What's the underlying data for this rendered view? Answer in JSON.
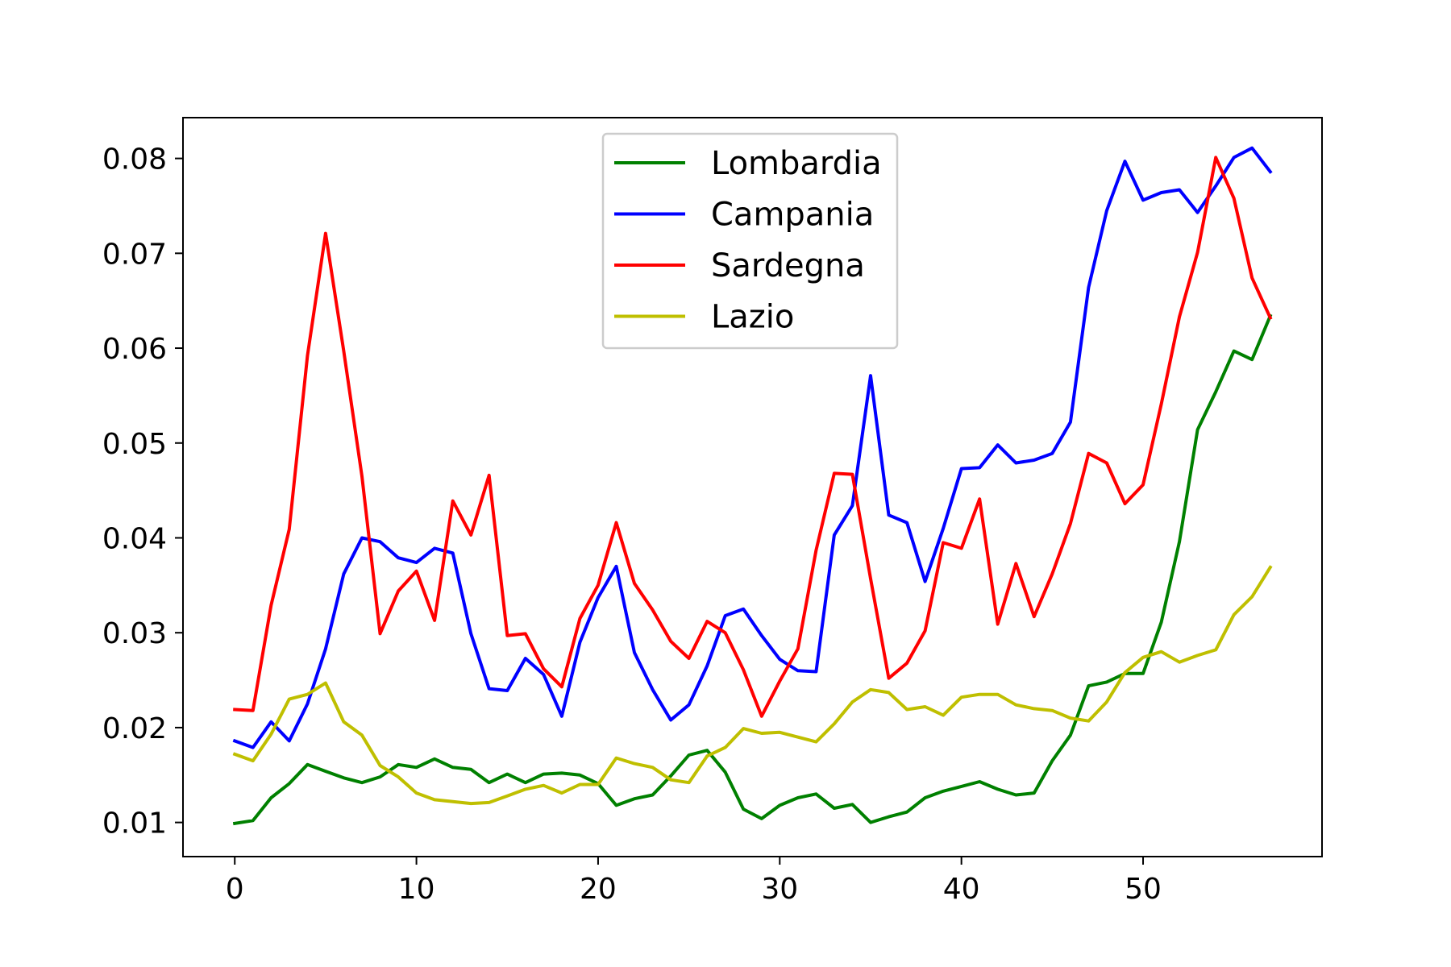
{
  "chart_data": {
    "type": "line",
    "title": "",
    "xlabel": "",
    "ylabel": "",
    "xlim": [
      -2.85,
      59.85
    ],
    "ylim": [
      0.0064,
      0.0843
    ],
    "x_ticks": [
      0,
      10,
      20,
      30,
      40,
      50
    ],
    "x_tick_labels": [
      "0",
      "10",
      "20",
      "30",
      "40",
      "50"
    ],
    "y_ticks": [
      0.01,
      0.02,
      0.03,
      0.04,
      0.05,
      0.06,
      0.07,
      0.08
    ],
    "y_tick_labels": [
      "0.01",
      "0.02",
      "0.03",
      "0.04",
      "0.05",
      "0.06",
      "0.07",
      "0.08"
    ],
    "grid": false,
    "legend_position": "upper center",
    "x": [
      0,
      1,
      2,
      3,
      4,
      5,
      6,
      7,
      8,
      9,
      10,
      11,
      12,
      13,
      14,
      15,
      16,
      17,
      18,
      19,
      20,
      21,
      22,
      23,
      24,
      25,
      26,
      27,
      28,
      29,
      30,
      31,
      32,
      33,
      34,
      35,
      36,
      37,
      38,
      39,
      40,
      41,
      42,
      43,
      44,
      45,
      46,
      47,
      48,
      49,
      50,
      51,
      52,
      53,
      54,
      55,
      56,
      57
    ],
    "series": [
      {
        "name": "Lombardia",
        "color": "#008000",
        "values": [
          0.0099,
          0.0102,
          0.0126,
          0.0141,
          0.0161,
          0.0154,
          0.0147,
          0.0142,
          0.0148,
          0.0161,
          0.0158,
          0.0167,
          0.0158,
          0.0156,
          0.0142,
          0.0151,
          0.0142,
          0.0151,
          0.0152,
          0.015,
          0.0141,
          0.0118,
          0.0125,
          0.0129,
          0.0149,
          0.0171,
          0.0176,
          0.0153,
          0.0114,
          0.0104,
          0.0118,
          0.0126,
          0.013,
          0.0115,
          0.0119,
          0.01,
          0.0106,
          0.0111,
          0.0126,
          0.0133,
          0.0138,
          0.0143,
          0.0135,
          0.0129,
          0.0131,
          0.0165,
          0.0192,
          0.0244,
          0.0248,
          0.0257,
          0.0257,
          0.0311,
          0.0396,
          0.0514,
          0.0554,
          0.0597,
          0.0588,
          0.0634
        ]
      },
      {
        "name": "Campania",
        "color": "#0000ff",
        "values": [
          0.0186,
          0.0179,
          0.0206,
          0.0186,
          0.0225,
          0.0283,
          0.0362,
          0.04,
          0.0396,
          0.0379,
          0.0374,
          0.0389,
          0.0384,
          0.0299,
          0.0241,
          0.0239,
          0.0273,
          0.0256,
          0.0212,
          0.029,
          0.0337,
          0.037,
          0.0279,
          0.024,
          0.0208,
          0.0224,
          0.0265,
          0.0318,
          0.0325,
          0.0297,
          0.0272,
          0.026,
          0.0259,
          0.0403,
          0.0434,
          0.0571,
          0.0424,
          0.0416,
          0.0354,
          0.041,
          0.0473,
          0.0474,
          0.0498,
          0.0479,
          0.0482,
          0.0489,
          0.0522,
          0.0664,
          0.0745,
          0.0797,
          0.0756,
          0.0764,
          0.0767,
          0.0743,
          0.0771,
          0.0801,
          0.0811,
          0.0786
        ]
      },
      {
        "name": "Sardegna",
        "color": "#ff0000",
        "values": [
          0.0219,
          0.0218,
          0.0329,
          0.0409,
          0.0592,
          0.0721,
          0.0597,
          0.0465,
          0.0299,
          0.0344,
          0.0365,
          0.0313,
          0.0439,
          0.0403,
          0.0466,
          0.0297,
          0.0299,
          0.0262,
          0.0243,
          0.0315,
          0.035,
          0.0416,
          0.0352,
          0.0324,
          0.0291,
          0.0273,
          0.0312,
          0.03,
          0.0261,
          0.0212,
          0.0249,
          0.0283,
          0.0387,
          0.0468,
          0.0467,
          0.0357,
          0.0252,
          0.0268,
          0.0302,
          0.0395,
          0.0389,
          0.0441,
          0.0309,
          0.0373,
          0.0317,
          0.0362,
          0.0415,
          0.0489,
          0.0479,
          0.0436,
          0.0456,
          0.0541,
          0.0633,
          0.0701,
          0.0801,
          0.0758,
          0.0674,
          0.0632
        ]
      },
      {
        "name": "Lazio",
        "color": "#bfbf00",
        "values": [
          0.0172,
          0.0165,
          0.0193,
          0.023,
          0.0235,
          0.0247,
          0.0206,
          0.0192,
          0.016,
          0.0148,
          0.0131,
          0.0124,
          0.0122,
          0.012,
          0.0121,
          0.0128,
          0.0135,
          0.0139,
          0.0131,
          0.014,
          0.014,
          0.0168,
          0.0162,
          0.0158,
          0.0145,
          0.0142,
          0.017,
          0.0179,
          0.0199,
          0.0194,
          0.0195,
          0.019,
          0.0185,
          0.0204,
          0.0227,
          0.024,
          0.0237,
          0.0219,
          0.0222,
          0.0213,
          0.0232,
          0.0235,
          0.0235,
          0.0224,
          0.022,
          0.0218,
          0.021,
          0.0207,
          0.0227,
          0.0258,
          0.0274,
          0.028,
          0.0269,
          0.0276,
          0.0282,
          0.0319,
          0.0338,
          0.0369
        ]
      }
    ]
  }
}
